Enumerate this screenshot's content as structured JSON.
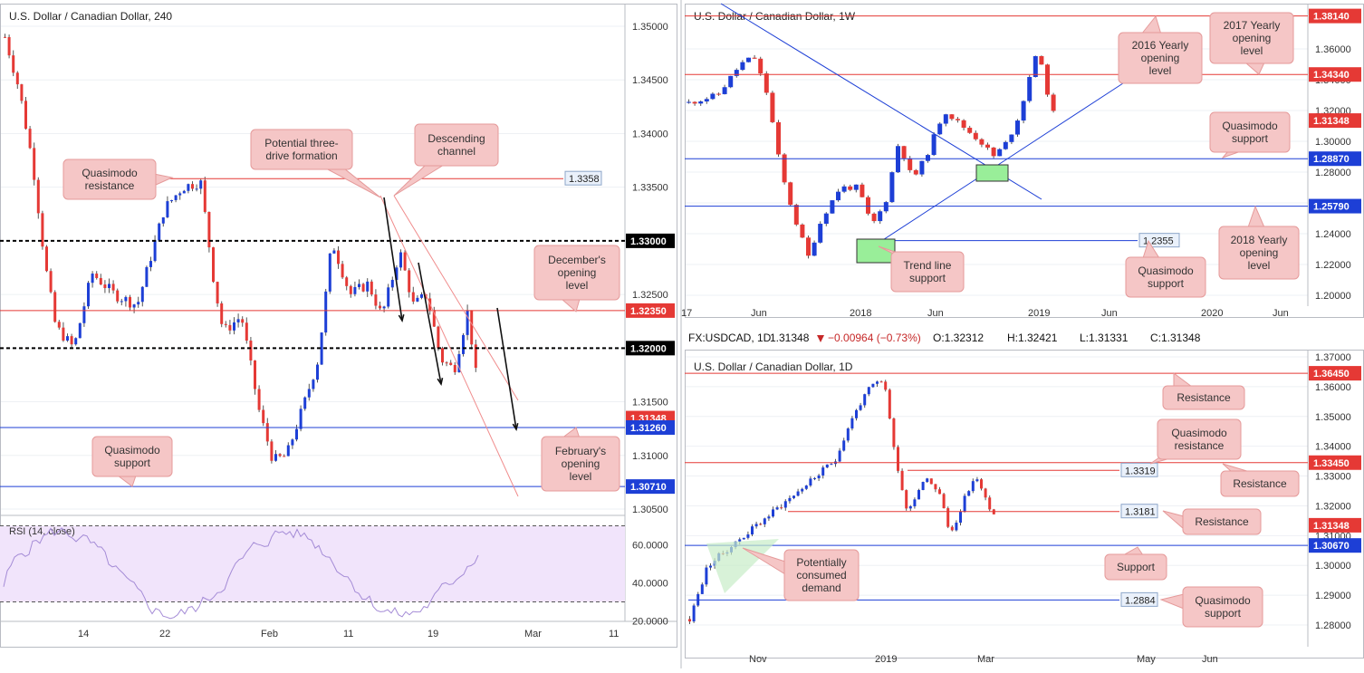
{
  "chart_data": [
    {
      "type": "candlestick",
      "title": "U.S. Dollar / Canadian Dollar, 240",
      "price_axis": [
        "1.35000",
        "1.34500",
        "1.34000",
        "1.33500",
        "1.33000",
        "1.32500",
        "1.32000",
        "1.31500",
        "1.31000",
        "1.30500"
      ],
      "time_axis": [
        "14",
        "22",
        "Feb",
        "11",
        "19",
        "Mar",
        "11"
      ],
      "ylim": [
        1.304,
        1.355
      ],
      "price_tags": [
        {
          "label": "1.33000",
          "value": 1.33,
          "color": "#000000"
        },
        {
          "label": "1.32350",
          "value": 1.3235,
          "color": "#e53935"
        },
        {
          "label": "1.32000",
          "value": 1.32,
          "color": "#000000"
        },
        {
          "label": "1.31348",
          "value": 1.31348,
          "color": "#e53935"
        },
        {
          "label": "1.31260",
          "value": 1.3126,
          "color": "#1d3fd6"
        },
        {
          "label": "1.30710",
          "value": 1.3071,
          "color": "#1d3fd6"
        }
      ],
      "lines": [
        {
          "value": 1.3358,
          "style": "solid",
          "color": "#e53935",
          "label": "1.3358"
        },
        {
          "value": 1.33,
          "style": "dashed",
          "color": "#000000"
        },
        {
          "value": 1.3235,
          "style": "solid",
          "color": "#e53935"
        },
        {
          "value": 1.32,
          "style": "dashed",
          "color": "#000000"
        },
        {
          "value": 1.3126,
          "style": "solid",
          "color": "#1d3fd6"
        },
        {
          "value": 1.3071,
          "style": "solid",
          "color": "#1d3fd6"
        }
      ],
      "annotations": [
        "Quasimodo resistance",
        "Potential three-drive formation",
        "Descending channel",
        "December's opening level",
        "Quasimodo support",
        "February's opening level"
      ],
      "indicator": {
        "name": "RSI (14, close)",
        "axis": [
          "60.0000",
          "40.0000",
          "20.0000"
        ],
        "ylim": [
          15,
          75
        ],
        "bands": [
          30,
          70
        ]
      }
    },
    {
      "type": "candlestick",
      "title": "U.S. Dollar / Canadian Dollar, 1W",
      "price_axis": [
        "1.36000",
        "1.34000",
        "1.32000",
        "1.30000",
        "1.28000",
        "1.26000",
        "1.24000",
        "1.22000",
        "1.20000"
      ],
      "time_axis": [
        "17",
        "Jun",
        "2018",
        "Jun",
        "2019",
        "Jun",
        "2020",
        "Jun"
      ],
      "ylim": [
        1.192,
        1.388
      ],
      "price_tags": [
        {
          "label": "1.38140",
          "value": 1.3814,
          "color": "#e53935"
        },
        {
          "label": "1.34340",
          "value": 1.3434,
          "color": "#e53935"
        },
        {
          "label": "1.31348",
          "value": 1.31348,
          "color": "#e53935"
        },
        {
          "label": "1.28870",
          "value": 1.2887,
          "color": "#1d3fd6"
        },
        {
          "label": "1.25790",
          "value": 1.2579,
          "color": "#1d3fd6"
        }
      ],
      "lines": [
        {
          "value": 1.3814,
          "color": "#e53935"
        },
        {
          "value": 1.3434,
          "color": "#e53935"
        },
        {
          "value": 1.2887,
          "color": "#1d3fd6"
        },
        {
          "value": 1.2579,
          "color": "#1d3fd6"
        },
        {
          "value": 1.2355,
          "color": "#1d3fd6",
          "label": "1.2355"
        }
      ],
      "annotations": [
        "2017 Yearly opening level",
        "2016 Yearly opening level",
        "Quasimodo support",
        "2018 Yearly opening level",
        "Quasimodo support",
        "Trend line support"
      ]
    },
    {
      "type": "candlestick",
      "title": "U.S. Dollar / Canadian Dollar, 1D",
      "quote": {
        "symbol": "FX:USDCAD, 1D",
        "last": "1.31348",
        "change": "−0.00964 (−0.73%)",
        "open": "O:1.32312",
        "high": "H:1.32421",
        "low": "L:1.31331",
        "close": "C:1.31348"
      },
      "price_axis": [
        "1.37000",
        "1.36000",
        "1.35000",
        "1.34000",
        "1.33000",
        "1.32000",
        "1.31000",
        "1.30000",
        "1.29000",
        "1.28000"
      ],
      "time_axis": [
        "Nov",
        "2019",
        "Mar",
        "May",
        "Jun"
      ],
      "ylim": [
        1.276,
        1.372
      ],
      "price_tags": [
        {
          "label": "1.36450",
          "value": 1.3645,
          "color": "#e53935"
        },
        {
          "label": "1.33450",
          "value": 1.3345,
          "color": "#e53935"
        },
        {
          "label": "1.31348",
          "value": 1.31348,
          "color": "#e53935"
        },
        {
          "label": "1.30670",
          "value": 1.3067,
          "color": "#1d3fd6"
        }
      ],
      "lines": [
        {
          "value": 1.3645,
          "color": "#e53935"
        },
        {
          "value": 1.3345,
          "color": "#e53935"
        },
        {
          "value": 1.3319,
          "color": "#e53935",
          "label": "1.3319"
        },
        {
          "value": 1.3181,
          "color": "#e53935",
          "label": "1.3181"
        },
        {
          "value": 1.3067,
          "color": "#1d3fd6"
        },
        {
          "value": 1.2884,
          "color": "#1d3fd6",
          "label": "1.2884"
        }
      ],
      "annotations": [
        "Resistance",
        "Quasimodo resistance",
        "Resistance",
        "Resistance",
        "Support",
        "Quasimodo support",
        "Potentially consumed demand"
      ]
    }
  ]
}
